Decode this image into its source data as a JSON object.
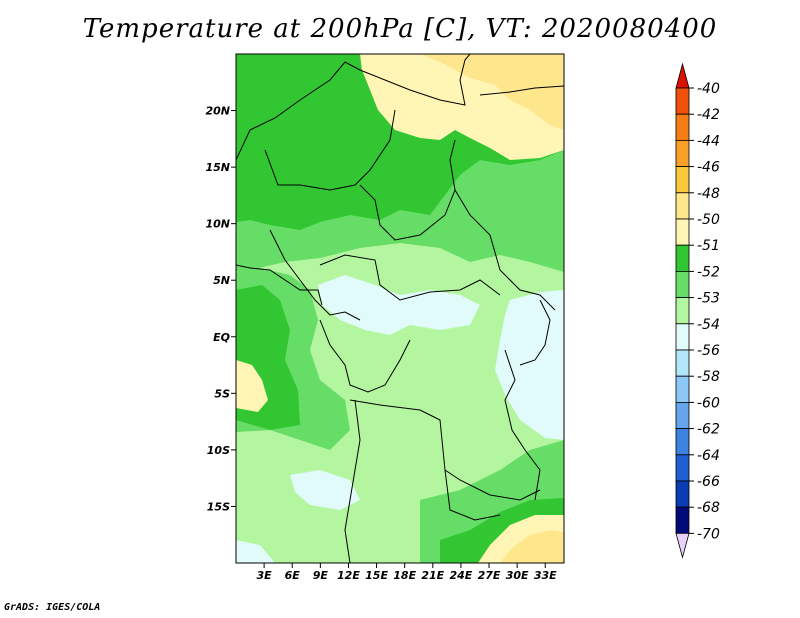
{
  "title": "Temperature at 200hPa [C], VT: 2020080400",
  "credit": "GrADS: IGES/COLA",
  "map": {
    "lon_range": [
      0,
      35
    ],
    "lat_range": [
      -20,
      25
    ],
    "lat_labels": [
      "20N",
      "15N",
      "10N",
      "5N",
      "EQ",
      "5S",
      "10S",
      "15S"
    ],
    "lat_values": [
      20,
      15,
      10,
      5,
      0,
      -5,
      -10,
      -15
    ],
    "lon_labels": [
      "3E",
      "6E",
      "9E",
      "12E",
      "15E",
      "18E",
      "21E",
      "24E",
      "27E",
      "30E",
      "33E"
    ],
    "lon_values": [
      3,
      6,
      9,
      12,
      15,
      18,
      21,
      24,
      27,
      30,
      33
    ]
  },
  "colorbar": {
    "labels": [
      "-40",
      "-42",
      "-44",
      "-46",
      "-48",
      "-50",
      "-51",
      "-52",
      "-53",
      "-54",
      "-56",
      "-58",
      "-60",
      "-62",
      "-64",
      "-66",
      "-68",
      "-70"
    ],
    "colors": [
      "#e61e00",
      "#f0500a",
      "#f57d14",
      "#f8a028",
      "#fac83c",
      "#fde68c",
      "#fff5b4",
      "#33c633",
      "#66dd66",
      "#b4f5a0",
      "#e1fafa",
      "#b4e6fa",
      "#8cc8f5",
      "#64a5eb",
      "#3c82e1",
      "#1e5fd2",
      "#0a3cb4",
      "#000a78"
    ],
    "top_color": "#dd1100",
    "bottom_color": "#e6d2fa"
  },
  "field_colors": {
    "c51": "#fff5b4",
    "c50": "#fde68c",
    "c52": "#33c633",
    "c53": "#66dd66",
    "c54": "#b4f5a0",
    "c56": "#e1fafa"
  }
}
